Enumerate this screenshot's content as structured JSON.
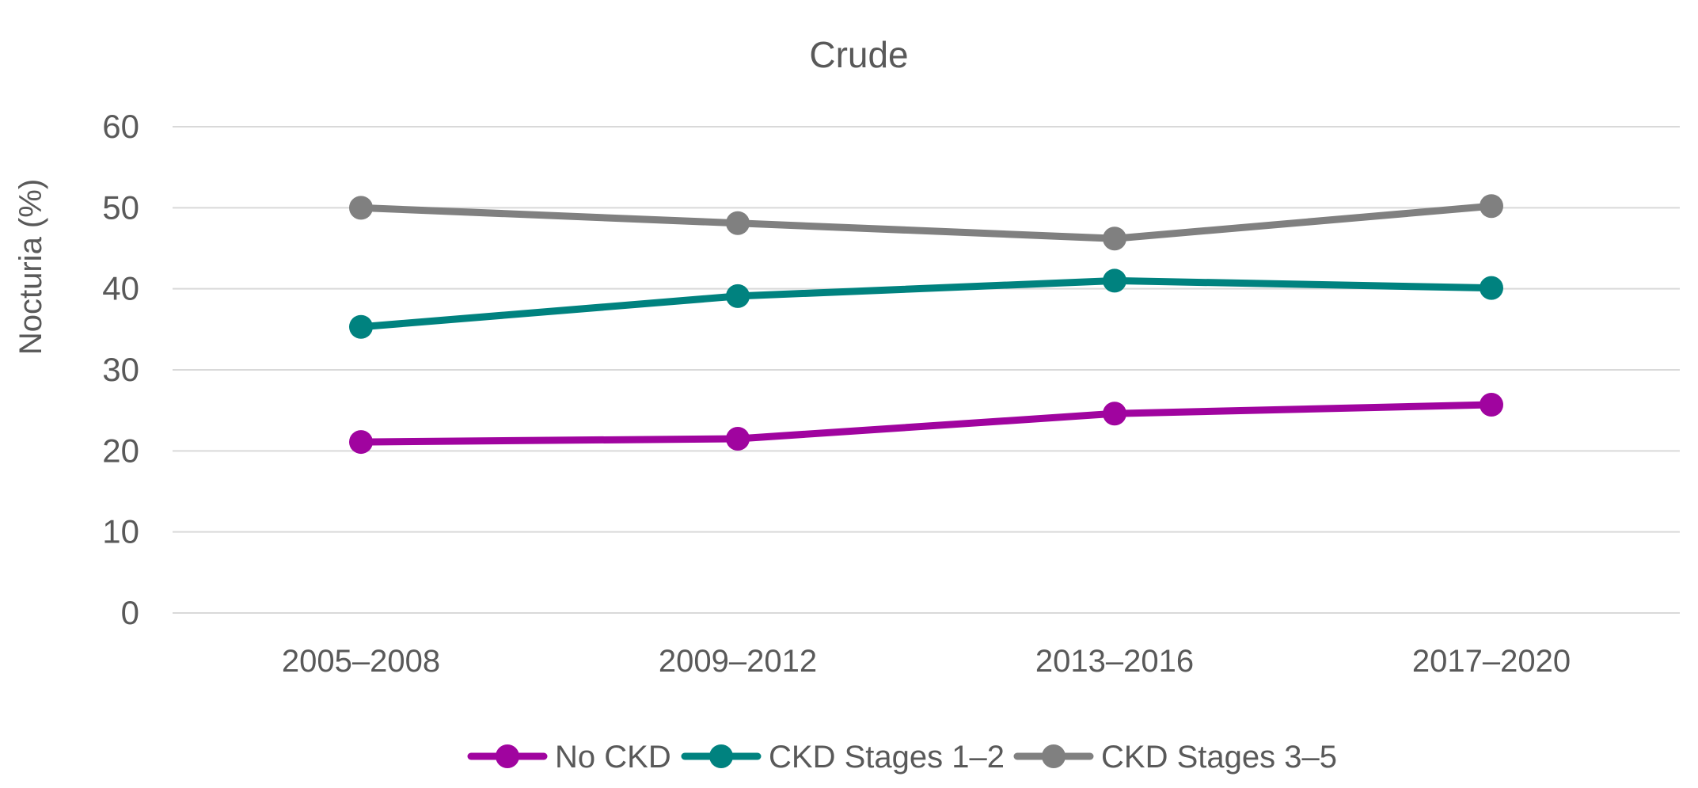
{
  "chart_data": {
    "type": "line",
    "title": "Crude",
    "xlabel": "",
    "ylabel": "Nocturia (%)",
    "categories": [
      "2005–2008",
      "2009–2012",
      "2013–2016",
      "2017–2020"
    ],
    "ylim": [
      0,
      60
    ],
    "yticks": [
      0,
      10,
      20,
      30,
      40,
      50,
      60
    ],
    "grid": true,
    "legend_position": "bottom",
    "series": [
      {
        "name": "No CKD",
        "color": "#A0049F",
        "values": [
          21.1,
          21.5,
          24.6,
          25.7
        ]
      },
      {
        "name": "CKD Stages 1–2",
        "color": "#00827F",
        "values": [
          35.3,
          39.1,
          41.0,
          40.1
        ]
      },
      {
        "name": "CKD Stages 3–5",
        "color": "#808080",
        "values": [
          50.0,
          48.1,
          46.2,
          50.2
        ]
      }
    ],
    "gridline_color": "#D9D9D9",
    "text_color": "#595959"
  }
}
